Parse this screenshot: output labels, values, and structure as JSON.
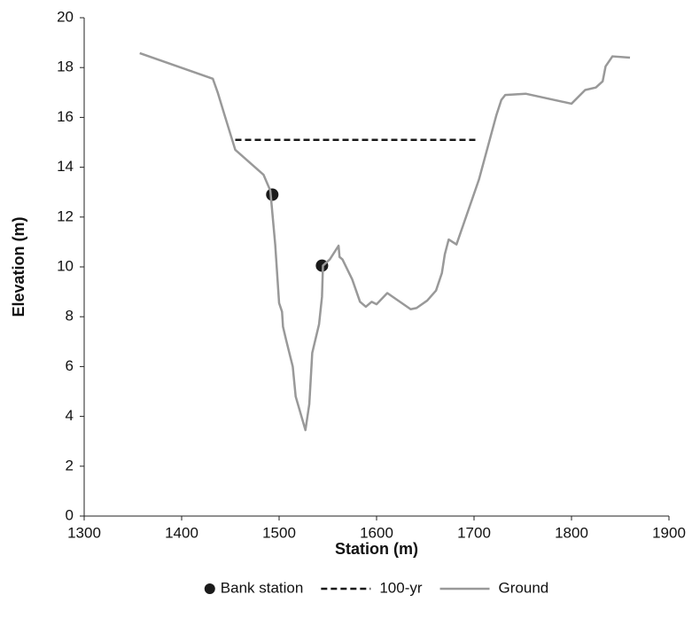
{
  "chart_data": {
    "type": "line",
    "x_label": "Station (m)",
    "y_label": "Elevation (m)",
    "xlim": [
      1300,
      1900
    ],
    "xticks": [
      1300,
      1400,
      1500,
      1600,
      1700,
      1800,
      1900
    ],
    "ylim": [
      0,
      20
    ],
    "yticks": [
      0,
      2,
      4,
      6,
      8,
      10,
      12,
      14,
      16,
      18,
      20
    ],
    "grid": false,
    "legend": "bottom",
    "series": [
      {
        "name": "Bank station",
        "color": "#1a1a1a",
        "style": "markers",
        "x": [
          1493,
          1544
        ],
        "values": [
          12.9,
          10.05
        ]
      },
      {
        "name": "100-yr",
        "color": "#1a1a1a",
        "style": "dashed",
        "x": [
          1455,
          1702
        ],
        "values": [
          15.1,
          15.1
        ]
      },
      {
        "name": "Ground",
        "color": "#999999",
        "style": "solid",
        "x": [
          1357,
          1432,
          1437,
          1444,
          1455,
          1484,
          1491,
          1496,
          1500,
          1503,
          1504,
          1507,
          1514,
          1517,
          1527,
          1531,
          1534,
          1541,
          1544,
          1545,
          1552,
          1561,
          1562,
          1565,
          1575,
          1583,
          1589,
          1595,
          1600,
          1611,
          1635,
          1641,
          1652,
          1661,
          1667,
          1670,
          1674,
          1682,
          1705,
          1723,
          1728,
          1732,
          1753,
          1800,
          1814,
          1825,
          1832,
          1835,
          1842,
          1860
        ],
        "values": [
          18.58,
          17.55,
          17.0,
          16.1,
          14.7,
          13.7,
          13.06,
          10.9,
          8.55,
          8.2,
          7.6,
          7.1,
          6.0,
          4.8,
          3.45,
          4.5,
          6.55,
          7.7,
          8.8,
          10.05,
          10.3,
          10.85,
          10.4,
          10.3,
          9.5,
          8.6,
          8.4,
          8.6,
          8.5,
          8.95,
          8.3,
          8.35,
          8.65,
          9.05,
          9.75,
          10.5,
          11.1,
          10.9,
          13.5,
          16.1,
          16.7,
          16.9,
          16.95,
          16.55,
          17.1,
          17.2,
          17.45,
          18.05,
          18.45,
          18.4
        ]
      }
    ]
  }
}
